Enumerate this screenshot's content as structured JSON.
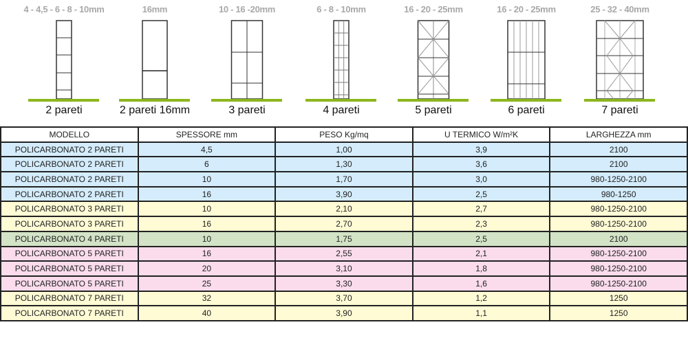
{
  "profiles": [
    {
      "sizes": "4 - 4,5 - 6 - 8 - 10mm",
      "name": "2 pareti"
    },
    {
      "sizes": "16mm",
      "name": "2 pareti 16mm"
    },
    {
      "sizes": "10 - 16 -20mm",
      "name": "3 pareti"
    },
    {
      "sizes": "6 - 8 - 10mm",
      "name": "4 pareti"
    },
    {
      "sizes": "16 - 20 - 25mm",
      "name": "5 pareti"
    },
    {
      "sizes": "16 - 20 - 25mm",
      "name": "6 pareti"
    },
    {
      "sizes": "25 - 32 - 40mm",
      "name": "7 pareti"
    }
  ],
  "colors": {
    "ground": "#8db61e",
    "blue": "#d4ecfb",
    "yellow": "#fefbd5",
    "green": "#d3e3c6",
    "pink": "#fadcec"
  },
  "table": {
    "headers": [
      "MODELLO",
      "SPESSORE mm",
      "PESO Kg/mq",
      "U TERMICO W/m²K",
      "LARGHEZZA mm"
    ],
    "rows": [
      {
        "color": "blue",
        "cells": [
          "POLICARBONATO 2 PARETI",
          "4,5",
          "1,00",
          "3,9",
          "2100"
        ]
      },
      {
        "color": "blue",
        "cells": [
          "POLICARBONATO 2 PARETI",
          "6",
          "1,30",
          "3,6",
          "2100"
        ]
      },
      {
        "color": "blue",
        "cells": [
          "POLICARBONATO 2 PARETI",
          "10",
          "1,70",
          "3,0",
          "980-1250-2100"
        ]
      },
      {
        "color": "blue",
        "cells": [
          "POLICARBONATO 2 PARETI",
          "16",
          "3,90",
          "2,5",
          "980-1250"
        ]
      },
      {
        "color": "yellow",
        "cells": [
          "POLICARBONATO 3 PARETI",
          "10",
          "2,10",
          "2,7",
          "980-1250-2100"
        ]
      },
      {
        "color": "yellow",
        "cells": [
          "POLICARBONATO 3 PARETI",
          "16",
          "2,70",
          "2,3",
          "980-1250-2100"
        ]
      },
      {
        "color": "green",
        "cells": [
          "POLICARBONATO 4 PARETI",
          "10",
          "1,75",
          "2,5",
          "2100"
        ]
      },
      {
        "color": "pink",
        "cells": [
          "POLICARBONATO 5 PARETI",
          "16",
          "2,55",
          "2,1",
          "980-1250-2100"
        ]
      },
      {
        "color": "pink",
        "cells": [
          "POLICARBONATO 5 PARETI",
          "20",
          "3,10",
          "1,8",
          "980-1250-2100"
        ]
      },
      {
        "color": "pink",
        "cells": [
          "POLICARBONATO 5 PARETI",
          "25",
          "3,30",
          "1,6",
          "980-1250-2100"
        ]
      },
      {
        "color": "yellow",
        "cells": [
          "POLICARBONATO 7 PARETI",
          "32",
          "3,70",
          "1,2",
          "1250"
        ]
      },
      {
        "color": "yellow",
        "cells": [
          "POLICARBONATO 7 PARETI",
          "40",
          "3,90",
          "1,1",
          "1250"
        ]
      }
    ]
  }
}
